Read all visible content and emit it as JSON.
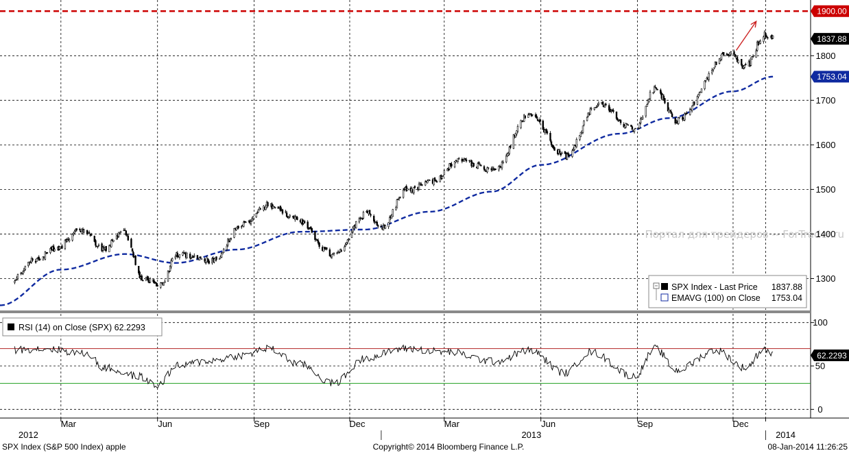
{
  "chart_data": [
    {
      "type": "candlestick",
      "panel": "price",
      "ylim": [
        1230,
        1925
      ],
      "yticks": [
        1300,
        1400,
        1500,
        1600,
        1700,
        1800
      ],
      "price_anchors": [
        {
          "date": "2012-01-17",
          "value": 1300
        },
        {
          "date": "2012-02-03",
          "value": 1340
        },
        {
          "date": "2012-02-28",
          "value": 1370
        },
        {
          "date": "2012-03-16",
          "value": 1405
        },
        {
          "date": "2012-03-23",
          "value": 1410
        },
        {
          "date": "2012-04-10",
          "value": 1365
        },
        {
          "date": "2012-04-30",
          "value": 1405
        },
        {
          "date": "2012-05-18",
          "value": 1300
        },
        {
          "date": "2012-06-04",
          "value": 1285
        },
        {
          "date": "2012-06-20",
          "value": 1355
        },
        {
          "date": "2012-07-24",
          "value": 1340
        },
        {
          "date": "2012-08-20",
          "value": 1420
        },
        {
          "date": "2012-09-14",
          "value": 1465
        },
        {
          "date": "2012-10-10",
          "value": 1435
        },
        {
          "date": "2012-11-15",
          "value": 1355
        },
        {
          "date": "2012-12-18",
          "value": 1445
        },
        {
          "date": "2012-12-31",
          "value": 1415
        },
        {
          "date": "2013-01-25",
          "value": 1500
        },
        {
          "date": "2013-02-20",
          "value": 1520
        },
        {
          "date": "2013-03-14",
          "value": 1565
        },
        {
          "date": "2013-04-18",
          "value": 1545
        },
        {
          "date": "2013-05-21",
          "value": 1670
        },
        {
          "date": "2013-06-24",
          "value": 1575
        },
        {
          "date": "2013-07-25",
          "value": 1690
        },
        {
          "date": "2013-08-29",
          "value": 1635
        },
        {
          "date": "2013-09-18",
          "value": 1725
        },
        {
          "date": "2013-10-08",
          "value": 1655
        },
        {
          "date": "2013-11-27",
          "value": 1805
        },
        {
          "date": "2013-12-13",
          "value": 1775
        },
        {
          "date": "2013-12-31",
          "value": 1848
        },
        {
          "date": "2014-01-08",
          "value": 1837.88
        }
      ],
      "ema_anchors": [
        {
          "date": "2012-01-03",
          "value": 1240
        },
        {
          "date": "2012-03-01",
          "value": 1320
        },
        {
          "date": "2012-05-01",
          "value": 1355
        },
        {
          "date": "2012-06-18",
          "value": 1335
        },
        {
          "date": "2012-08-15",
          "value": 1365
        },
        {
          "date": "2012-10-15",
          "value": 1405
        },
        {
          "date": "2012-12-15",
          "value": 1410
        },
        {
          "date": "2013-02-15",
          "value": 1450
        },
        {
          "date": "2013-04-15",
          "value": 1495
        },
        {
          "date": "2013-06-01",
          "value": 1555
        },
        {
          "date": "2013-08-15",
          "value": 1625
        },
        {
          "date": "2013-10-01",
          "value": 1660
        },
        {
          "date": "2013-12-01",
          "value": 1720
        },
        {
          "date": "2014-01-08",
          "value": 1753.04
        }
      ],
      "annotations": [
        {
          "value": 1900,
          "label": "1900.00",
          "color": "#cc0000"
        },
        {
          "value": 1837.88,
          "label": "1837.88",
          "color": "#000000"
        },
        {
          "value": 1753.04,
          "label": "1753.04",
          "color": "#0f2aa0"
        }
      ],
      "arrow": {
        "from": {
          "date": "2013-12-04",
          "value": 1812
        },
        "to": {
          "date": "2013-12-23",
          "value": 1877
        },
        "color": "#cc2222"
      },
      "legend": {
        "placement": "bottom-right",
        "entries": [
          {
            "label": "SPX Index - Last Price",
            "value": "1837.88"
          },
          {
            "label": "EMAVG (100) on Close",
            "value": "1753.04"
          }
        ]
      },
      "watermark": "Портал для трейдеров -- ForTrader.ru"
    },
    {
      "type": "line",
      "panel": "rsi",
      "ylim": [
        -10,
        110
      ],
      "yticks": [
        0,
        50,
        100
      ],
      "reference_lines": [
        {
          "value": 70,
          "color": "#b22222"
        },
        {
          "value": 30,
          "color": "#22a022"
        }
      ],
      "rsi_anchors": [
        {
          "date": "2012-01-03",
          "value": 68
        },
        {
          "date": "2012-02-15",
          "value": 70
        },
        {
          "date": "2012-03-27",
          "value": 64
        },
        {
          "date": "2012-04-10",
          "value": 48
        },
        {
          "date": "2012-05-15",
          "value": 38
        },
        {
          "date": "2012-05-31",
          "value": 27
        },
        {
          "date": "2012-06-20",
          "value": 50
        },
        {
          "date": "2012-07-20",
          "value": 56
        },
        {
          "date": "2012-08-20",
          "value": 62
        },
        {
          "date": "2012-09-14",
          "value": 70
        },
        {
          "date": "2012-10-15",
          "value": 52
        },
        {
          "date": "2012-11-15",
          "value": 30
        },
        {
          "date": "2012-12-18",
          "value": 60
        },
        {
          "date": "2013-01-22",
          "value": 70
        },
        {
          "date": "2013-03-05",
          "value": 66
        },
        {
          "date": "2013-04-18",
          "value": 55
        },
        {
          "date": "2013-05-21",
          "value": 68
        },
        {
          "date": "2013-06-24",
          "value": 42
        },
        {
          "date": "2013-07-18",
          "value": 66
        },
        {
          "date": "2013-08-29",
          "value": 38
        },
        {
          "date": "2013-09-18",
          "value": 70
        },
        {
          "date": "2013-10-08",
          "value": 45
        },
        {
          "date": "2013-11-15",
          "value": 68
        },
        {
          "date": "2013-12-13",
          "value": 48
        },
        {
          "date": "2013-12-31",
          "value": 70
        },
        {
          "date": "2014-01-08",
          "value": 62.2293
        }
      ],
      "last_value": "62.2293",
      "legend_text": "RSI (14) on Close (SPX) 62.2293"
    }
  ],
  "x_axis": {
    "range": [
      "2012-01-03",
      "2014-02-20"
    ],
    "gridlines": [
      "2012-03-01",
      "2012-06-01",
      "2012-09-01",
      "2012-12-01",
      "2013-03-01",
      "2013-06-01",
      "2013-09-01",
      "2013-12-01",
      "2014-01-01"
    ],
    "month_labels": [
      {
        "date": "2012-03-01",
        "label": "Mar"
      },
      {
        "date": "2012-06-01",
        "label": "Jun"
      },
      {
        "date": "2012-09-01",
        "label": "Sep"
      },
      {
        "date": "2012-12-01",
        "label": "Dec"
      },
      {
        "date": "2013-03-01",
        "label": "Mar"
      },
      {
        "date": "2013-06-01",
        "label": "Jun"
      },
      {
        "date": "2013-09-01",
        "label": "Sep"
      },
      {
        "date": "2013-12-01",
        "label": "Dec"
      }
    ],
    "year_labels": [
      {
        "date": "2012-01-30",
        "label": "2012"
      },
      {
        "date": "2013-05-23",
        "label": "2013"
      },
      {
        "date": "2014-01-20",
        "label": "2014"
      }
    ],
    "year_separators": [
      "2012-12-31",
      "2014-01-01"
    ]
  },
  "footer": {
    "left": "SPX Index (S&P 500 Index) apple",
    "center": "Copyright© 2014 Bloomberg Finance L.P.",
    "right": "08-Jan-2014 11:26:25"
  },
  "colors": {
    "price": "#000000",
    "ema": "#0f2aa0",
    "target": "#cc0000",
    "rsi_upper": "#b22222",
    "rsi_lower": "#22a022",
    "grid": "#000000"
  }
}
